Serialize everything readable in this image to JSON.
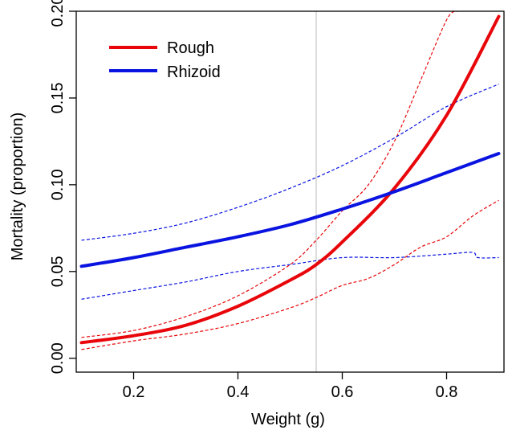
{
  "chart_data": {
    "type": "line",
    "title": "",
    "xlabel": "Weight (g)",
    "ylabel": "Mortality (proportion)",
    "xlim": [
      0.09,
      0.91
    ],
    "ylim": [
      -0.008,
      0.2
    ],
    "xticks": [
      "0.2",
      "0.4",
      "0.6",
      "0.8"
    ],
    "yticks": [
      "0.00",
      "0.05",
      "0.10",
      "0.15",
      "0.20"
    ],
    "grid": false,
    "legend": {
      "position": "top-left"
    },
    "reference_line": {
      "x": 0.55,
      "color": "#c8c8c8"
    },
    "series": [
      {
        "name": "Rough",
        "color": "#e8060a",
        "x": [
          0.1,
          0.2,
          0.3,
          0.4,
          0.5,
          0.55,
          0.6,
          0.7,
          0.8,
          0.9
        ],
        "values": [
          0.009,
          0.013,
          0.019,
          0.03,
          0.045,
          0.054,
          0.067,
          0.098,
          0.14,
          0.197
        ],
        "ci_upper": {
          "x": [
            0.1,
            0.2,
            0.3,
            0.4,
            0.5,
            0.55,
            0.6,
            0.65,
            0.7,
            0.75,
            0.8,
            0.82
          ],
          "values": [
            0.012,
            0.016,
            0.024,
            0.036,
            0.054,
            0.068,
            0.085,
            0.1,
            0.125,
            0.16,
            0.195,
            0.2
          ]
        },
        "ci_lower": {
          "x": [
            0.1,
            0.2,
            0.3,
            0.4,
            0.5,
            0.55,
            0.6,
            0.65,
            0.7,
            0.75,
            0.8,
            0.85,
            0.9
          ],
          "values": [
            0.005,
            0.01,
            0.014,
            0.02,
            0.029,
            0.035,
            0.042,
            0.046,
            0.054,
            0.064,
            0.07,
            0.082,
            0.091
          ]
        }
      },
      {
        "name": "Rhizoid",
        "color": "#0a14e0",
        "x": [
          0.1,
          0.2,
          0.3,
          0.4,
          0.5,
          0.6,
          0.7,
          0.8,
          0.9
        ],
        "values": [
          0.053,
          0.058,
          0.064,
          0.07,
          0.077,
          0.086,
          0.096,
          0.107,
          0.118
        ],
        "ci_upper": {
          "x": [
            0.1,
            0.2,
            0.3,
            0.4,
            0.5,
            0.6,
            0.7,
            0.8,
            0.9
          ],
          "values": [
            0.068,
            0.072,
            0.078,
            0.087,
            0.098,
            0.111,
            0.127,
            0.145,
            0.158
          ]
        },
        "ci_lower": {
          "x": [
            0.1,
            0.2,
            0.3,
            0.4,
            0.5,
            0.6,
            0.7,
            0.8,
            0.85,
            0.86,
            0.9
          ],
          "values": [
            0.034,
            0.039,
            0.044,
            0.05,
            0.054,
            0.058,
            0.058,
            0.06,
            0.061,
            0.058,
            0.058
          ]
        }
      }
    ]
  }
}
